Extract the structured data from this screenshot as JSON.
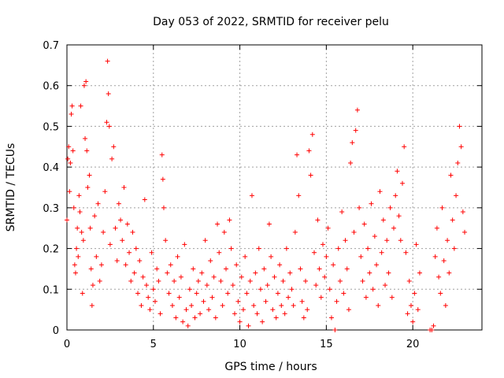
{
  "chart_data": {
    "type": "scatter",
    "title": "Day 053 of 2022, SRMTID for receiver pelu",
    "xlabel": "GPS time / hours",
    "ylabel": "SRMTID / TECUs",
    "xlim": [
      0,
      24
    ],
    "ylim": [
      0,
      0.7
    ],
    "xticks": [
      0,
      5,
      10,
      15,
      20
    ],
    "xtick_labels": [
      "0",
      "5",
      "10",
      "15",
      "20"
    ],
    "yticks": [
      0,
      0.1,
      0.2,
      0.3,
      0.4,
      0.5,
      0.6,
      0.7
    ],
    "ytick_labels": [
      "0",
      "0.1",
      "0.2",
      "0.3",
      "0.4",
      "0.5",
      "0.6",
      "0.7"
    ],
    "grid": true,
    "marker": "+",
    "marker_color": "#ff0000",
    "series": [
      {
        "name": "SRMTID",
        "points": [
          [
            0.0,
            0.27
          ],
          [
            0.05,
            0.42
          ],
          [
            0.1,
            0.45
          ],
          [
            0.15,
            0.34
          ],
          [
            0.2,
            0.41
          ],
          [
            0.25,
            0.53
          ],
          [
            0.3,
            0.55
          ],
          [
            0.35,
            0.44
          ],
          [
            0.4,
            0.3
          ],
          [
            0.45,
            0.16
          ],
          [
            0.5,
            0.14
          ],
          [
            0.55,
            0.2
          ],
          [
            0.6,
            0.25
          ],
          [
            0.65,
            0.18
          ],
          [
            0.7,
            0.33
          ],
          [
            0.75,
            0.29
          ],
          [
            0.8,
            0.55
          ],
          [
            0.85,
            0.24
          ],
          [
            0.9,
            0.09
          ],
          [
            0.95,
            0.22
          ],
          [
            1.0,
            0.6
          ],
          [
            1.05,
            0.47
          ],
          [
            1.1,
            0.61
          ],
          [
            1.15,
            0.44
          ],
          [
            1.2,
            0.35
          ],
          [
            1.3,
            0.38
          ],
          [
            1.35,
            0.25
          ],
          [
            1.4,
            0.15
          ],
          [
            1.45,
            0.06
          ],
          [
            1.5,
            0.11
          ],
          [
            1.6,
            0.28
          ],
          [
            1.7,
            0.18
          ],
          [
            1.8,
            0.31
          ],
          [
            1.9,
            0.12
          ],
          [
            2.0,
            0.16
          ],
          [
            2.1,
            0.24
          ],
          [
            2.2,
            0.34
          ],
          [
            2.3,
            0.51
          ],
          [
            2.35,
            0.66
          ],
          [
            2.4,
            0.58
          ],
          [
            2.45,
            0.5
          ],
          [
            2.5,
            0.21
          ],
          [
            2.6,
            0.42
          ],
          [
            2.7,
            0.45
          ],
          [
            2.8,
            0.25
          ],
          [
            2.9,
            0.17
          ],
          [
            3.0,
            0.31
          ],
          [
            3.1,
            0.27
          ],
          [
            3.2,
            0.22
          ],
          [
            3.3,
            0.35
          ],
          [
            3.4,
            0.16
          ],
          [
            3.5,
            0.26
          ],
          [
            3.6,
            0.19
          ],
          [
            3.7,
            0.12
          ],
          [
            3.8,
            0.24
          ],
          [
            3.9,
            0.14
          ],
          [
            4.0,
            0.2
          ],
          [
            4.1,
            0.09
          ],
          [
            4.2,
            0.17
          ],
          [
            4.3,
            0.06
          ],
          [
            4.4,
            0.13
          ],
          [
            4.5,
            0.32
          ],
          [
            4.6,
            0.11
          ],
          [
            4.7,
            0.08
          ],
          [
            4.8,
            0.05
          ],
          [
            4.9,
            0.19
          ],
          [
            5.0,
            0.1
          ],
          [
            5.1,
            0.07
          ],
          [
            5.2,
            0.15
          ],
          [
            5.3,
            0.12
          ],
          [
            5.4,
            0.04
          ],
          [
            5.5,
            0.43
          ],
          [
            5.55,
            0.37
          ],
          [
            5.6,
            0.3
          ],
          [
            5.7,
            0.22
          ],
          [
            5.8,
            0.14
          ],
          [
            5.9,
            0.09
          ],
          [
            6.0,
            0.16
          ],
          [
            6.1,
            0.06
          ],
          [
            6.2,
            0.12
          ],
          [
            6.3,
            0.03
          ],
          [
            6.4,
            0.18
          ],
          [
            6.5,
            0.08
          ],
          [
            6.6,
            0.13
          ],
          [
            6.7,
            0.02
          ],
          [
            6.8,
            0.21
          ],
          [
            6.9,
            0.05
          ],
          [
            7.0,
            0.01
          ],
          [
            7.1,
            0.1
          ],
          [
            7.2,
            0.06
          ],
          [
            7.3,
            0.15
          ],
          [
            7.4,
            0.03
          ],
          [
            7.5,
            0.09
          ],
          [
            7.6,
            0.12
          ],
          [
            7.7,
            0.04
          ],
          [
            7.8,
            0.14
          ],
          [
            7.9,
            0.07
          ],
          [
            8.0,
            0.22
          ],
          [
            8.1,
            0.11
          ],
          [
            8.2,
            0.05
          ],
          [
            8.3,
            0.17
          ],
          [
            8.4,
            0.08
          ],
          [
            8.5,
            0.13
          ],
          [
            8.6,
            0.03
          ],
          [
            8.7,
            0.26
          ],
          [
            8.8,
            0.19
          ],
          [
            8.9,
            0.12
          ],
          [
            9.0,
            0.06
          ],
          [
            9.1,
            0.24
          ],
          [
            9.2,
            0.15
          ],
          [
            9.3,
            0.09
          ],
          [
            9.4,
            0.27
          ],
          [
            9.5,
            0.2
          ],
          [
            9.6,
            0.11
          ],
          [
            9.7,
            0.04
          ],
          [
            9.8,
            0.16
          ],
          [
            9.9,
            0.07
          ],
          [
            10.0,
            0.02
          ],
          [
            10.1,
            0.13
          ],
          [
            10.2,
            0.05
          ],
          [
            10.3,
            0.18
          ],
          [
            10.4,
            0.09
          ],
          [
            10.5,
            0.01
          ],
          [
            10.6,
            0.12
          ],
          [
            10.7,
            0.33
          ],
          [
            10.8,
            0.06
          ],
          [
            10.9,
            0.14
          ],
          [
            11.0,
            0.04
          ],
          [
            11.1,
            0.2
          ],
          [
            11.2,
            0.1
          ],
          [
            11.3,
            0.02
          ],
          [
            11.4,
            0.15
          ],
          [
            11.5,
            0.07
          ],
          [
            11.6,
            0.11
          ],
          [
            11.7,
            0.26
          ],
          [
            11.8,
            0.18
          ],
          [
            11.9,
            0.05
          ],
          [
            12.0,
            0.13
          ],
          [
            12.1,
            0.03
          ],
          [
            12.2,
            0.09
          ],
          [
            12.3,
            0.16
          ],
          [
            12.4,
            0.06
          ],
          [
            12.5,
            0.12
          ],
          [
            12.6,
            0.04
          ],
          [
            12.7,
            0.2
          ],
          [
            12.8,
            0.08
          ],
          [
            12.9,
            0.14
          ],
          [
            13.0,
            0.1
          ],
          [
            13.1,
            0.06
          ],
          [
            13.2,
            0.24
          ],
          [
            13.3,
            0.43
          ],
          [
            13.4,
            0.33
          ],
          [
            13.5,
            0.15
          ],
          [
            13.6,
            0.07
          ],
          [
            13.7,
            0.03
          ],
          [
            13.8,
            0.12
          ],
          [
            13.9,
            0.05
          ],
          [
            14.0,
            0.44
          ],
          [
            14.1,
            0.38
          ],
          [
            14.2,
            0.48
          ],
          [
            14.3,
            0.19
          ],
          [
            14.4,
            0.11
          ],
          [
            14.5,
            0.27
          ],
          [
            14.6,
            0.15
          ],
          [
            14.7,
            0.08
          ],
          [
            14.8,
            0.21
          ],
          [
            14.9,
            0.13
          ],
          [
            15.0,
            0.18
          ],
          [
            15.1,
            0.25
          ],
          [
            15.2,
            0.1
          ],
          [
            15.3,
            0.03
          ],
          [
            15.4,
            0.16
          ],
          [
            15.5,
            0.0
          ],
          [
            15.6,
            0.07
          ],
          [
            15.7,
            0.2
          ],
          [
            15.8,
            0.12
          ],
          [
            15.9,
            0.29
          ],
          [
            16.0,
            0.09
          ],
          [
            16.1,
            0.22
          ],
          [
            16.2,
            0.15
          ],
          [
            16.3,
            0.05
          ],
          [
            16.4,
            0.41
          ],
          [
            16.5,
            0.46
          ],
          [
            16.6,
            0.24
          ],
          [
            16.7,
            0.49
          ],
          [
            16.8,
            0.54
          ],
          [
            16.9,
            0.3
          ],
          [
            17.0,
            0.18
          ],
          [
            17.1,
            0.12
          ],
          [
            17.2,
            0.26
          ],
          [
            17.3,
            0.08
          ],
          [
            17.4,
            0.2
          ],
          [
            17.5,
            0.14
          ],
          [
            17.6,
            0.31
          ],
          [
            17.7,
            0.1
          ],
          [
            17.8,
            0.23
          ],
          [
            17.9,
            0.16
          ],
          [
            18.0,
            0.06
          ],
          [
            18.1,
            0.34
          ],
          [
            18.2,
            0.19
          ],
          [
            18.3,
            0.27
          ],
          [
            18.4,
            0.11
          ],
          [
            18.5,
            0.22
          ],
          [
            18.6,
            0.14
          ],
          [
            18.7,
            0.3
          ],
          [
            18.8,
            0.08
          ],
          [
            18.9,
            0.25
          ],
          [
            19.0,
            0.33
          ],
          [
            19.1,
            0.39
          ],
          [
            19.2,
            0.28
          ],
          [
            19.3,
            0.22
          ],
          [
            19.4,
            0.36
          ],
          [
            19.5,
            0.45
          ],
          [
            19.6,
            0.19
          ],
          [
            19.7,
            0.04
          ],
          [
            19.8,
            0.12
          ],
          [
            19.9,
            0.06
          ],
          [
            20.0,
            0.02
          ],
          [
            20.1,
            0.09
          ],
          [
            20.2,
            0.21
          ],
          [
            20.3,
            0.05
          ],
          [
            20.4,
            0.14
          ],
          [
            21.0,
            0.0
          ],
          [
            21.1,
            0.0
          ],
          [
            21.2,
            0.01
          ],
          [
            21.3,
            0.18
          ],
          [
            21.4,
            0.25
          ],
          [
            21.5,
            0.13
          ],
          [
            21.6,
            0.09
          ],
          [
            21.7,
            0.3
          ],
          [
            21.8,
            0.17
          ],
          [
            21.9,
            0.06
          ],
          [
            22.0,
            0.22
          ],
          [
            22.1,
            0.14
          ],
          [
            22.2,
            0.38
          ],
          [
            22.3,
            0.27
          ],
          [
            22.4,
            0.2
          ],
          [
            22.5,
            0.33
          ],
          [
            22.6,
            0.41
          ],
          [
            22.7,
            0.5
          ],
          [
            22.8,
            0.45
          ],
          [
            22.9,
            0.29
          ],
          [
            23.0,
            0.24
          ]
        ]
      }
    ]
  }
}
